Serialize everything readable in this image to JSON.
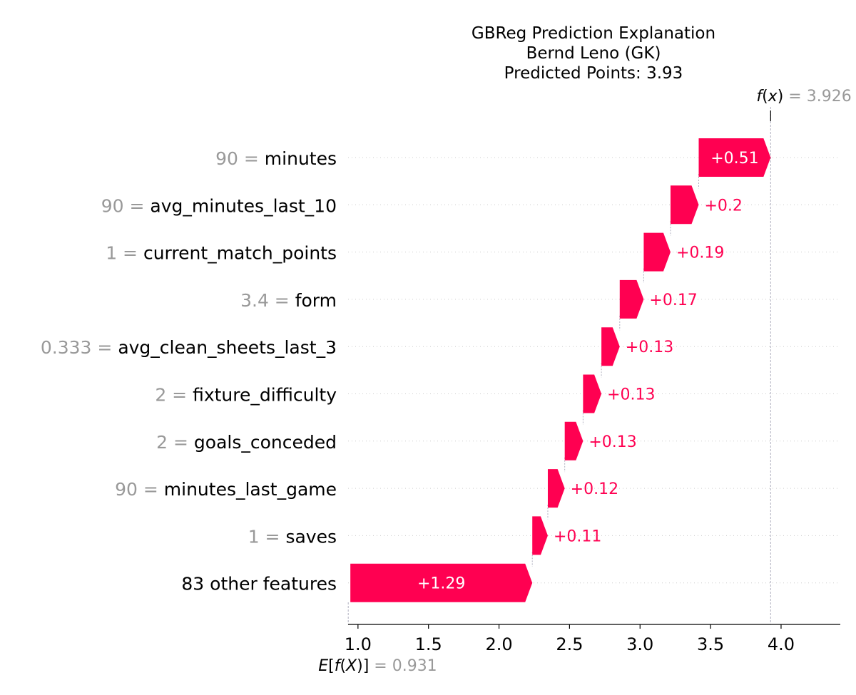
{
  "chart_data": {
    "type": "waterfall",
    "title_lines": [
      "GBReg Prediction Explanation",
      "Bernd Leno (GK)",
      "Predicted Points: 3.93"
    ],
    "fx": {
      "label_func": "f",
      "label_arg": "x",
      "value_text": "3.926",
      "value": 3.926
    },
    "expected": {
      "label_pre": "E[",
      "label_func": "f",
      "label_arg": "X",
      "label_post": "]",
      "value_text": "0.931",
      "value": 0.931
    },
    "xlim": [
      0.93,
      4.42
    ],
    "x_ticks": [
      1.0,
      1.5,
      2.0,
      2.5,
      3.0,
      3.5,
      4.0
    ],
    "x_tick_labels": [
      "1.0",
      "1.5",
      "2.0",
      "2.5",
      "3.0",
      "3.5",
      "4.0"
    ],
    "colors": {
      "positive": "#ff0051",
      "grid": "#cccccc",
      "axis": "#000000",
      "muted": "#999999"
    },
    "features": [
      {
        "value": "90",
        "name": "minutes",
        "contribution": 0.51,
        "label": "+0.51"
      },
      {
        "value": "90",
        "name": "avg_minutes_last_10",
        "contribution": 0.2,
        "label": "+0.2"
      },
      {
        "value": "1",
        "name": "current_match_points",
        "contribution": 0.19,
        "label": "+0.19"
      },
      {
        "value": "3.4",
        "name": "form",
        "contribution": 0.17,
        "label": "+0.17"
      },
      {
        "value": "0.333",
        "name": "avg_clean_sheets_last_3",
        "contribution": 0.13,
        "label": "+0.13"
      },
      {
        "value": "2",
        "name": "fixture_difficulty",
        "contribution": 0.13,
        "label": "+0.13"
      },
      {
        "value": "2",
        "name": "goals_conceded",
        "contribution": 0.13,
        "label": "+0.13"
      },
      {
        "value": "90",
        "name": "minutes_last_game",
        "contribution": 0.12,
        "label": "+0.12"
      },
      {
        "value": "1",
        "name": "saves",
        "contribution": 0.11,
        "label": "+0.11"
      },
      {
        "value": "",
        "name": "83 other features",
        "contribution": 1.29,
        "label": "+1.29"
      }
    ]
  }
}
